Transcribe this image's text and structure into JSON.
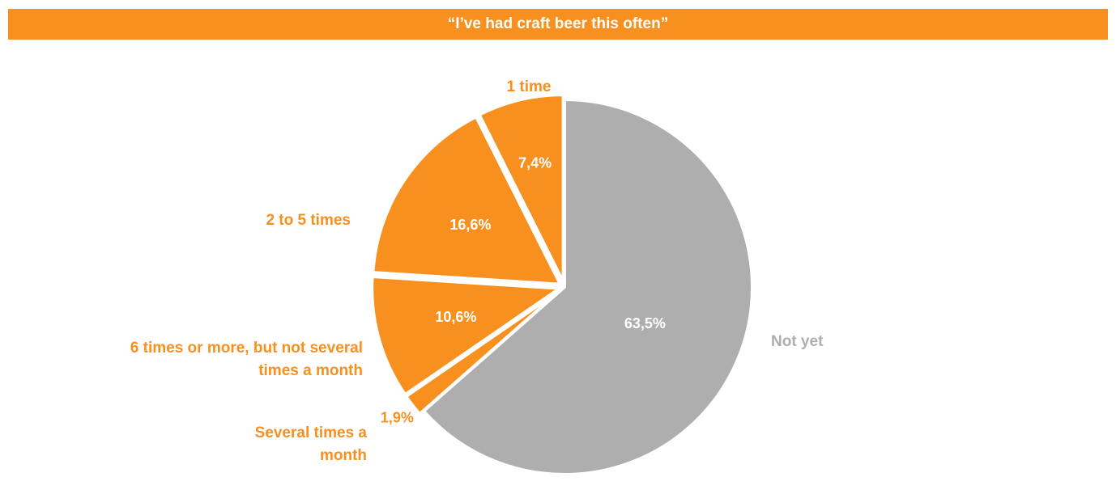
{
  "chart_data": {
    "type": "pie",
    "title": "“I’ve had craft beer this often”",
    "start": "top",
    "direction": "clockwise",
    "slices": [
      {
        "label": "Not yet",
        "value": 63.5,
        "display": "63,5%",
        "color": "#AEAEAE"
      },
      {
        "label": "Several times a month",
        "value": 1.9,
        "display": "1,9%",
        "color": "#F7901E"
      },
      {
        "label": "6 times or more, but not several times a month",
        "value": 10.6,
        "display": "10,6%",
        "color": "#F7901E"
      },
      {
        "label": "2 to 5 times",
        "value": 16.6,
        "display": "16,6%",
        "color": "#F7901E"
      },
      {
        "label": "1 time",
        "value": 7.4,
        "display": "7,4%",
        "color": "#F7901E"
      }
    ]
  }
}
